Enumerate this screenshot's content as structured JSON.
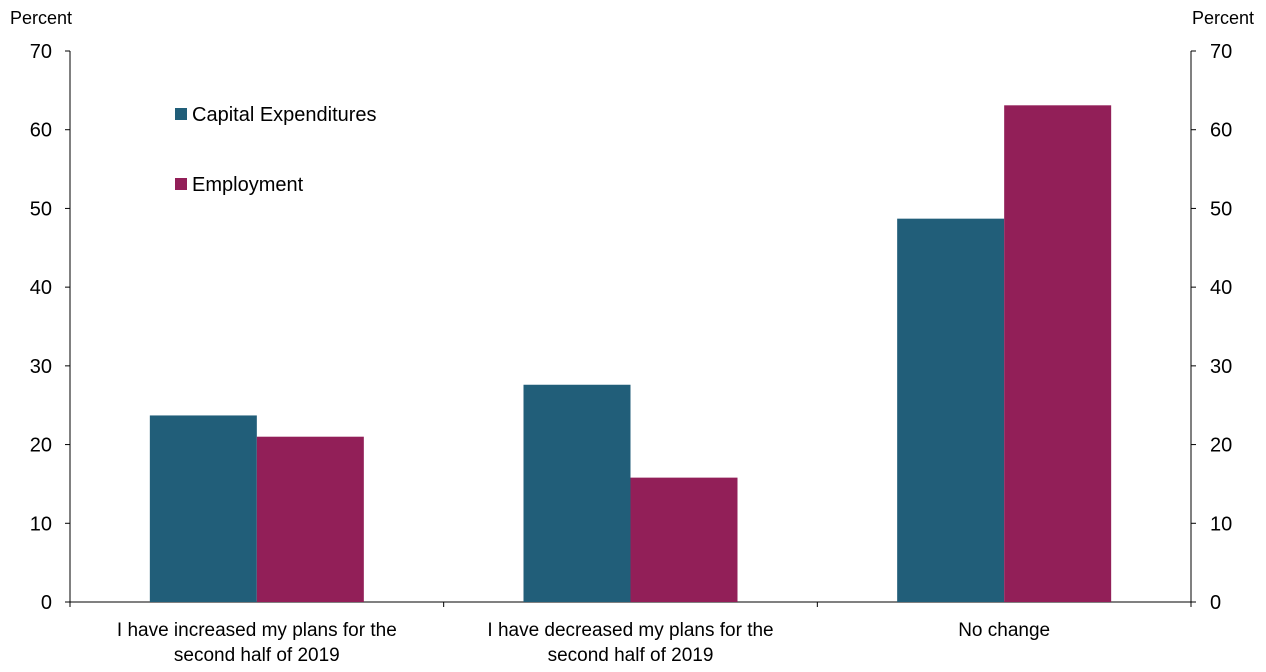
{
  "chart_data": {
    "type": "bar",
    "title": "",
    "left_axis_unit": "Percent",
    "right_axis_unit": "Percent",
    "ylim": [
      0,
      70
    ],
    "yticks": [
      0,
      10,
      20,
      30,
      40,
      50,
      60,
      70
    ],
    "grid": false,
    "legend_placement": "top-left",
    "categories": [
      [
        "I have increased my plans for the",
        "second half of 2019"
      ],
      [
        "I have decreased my plans for the",
        "second half of 2019"
      ],
      [
        "No change"
      ]
    ],
    "series": [
      {
        "name": "Capital Expenditures",
        "color": "#215e79",
        "values": [
          23.7,
          27.6,
          48.7
        ]
      },
      {
        "name": "Employment",
        "color": "#921f58",
        "values": [
          21.0,
          15.8,
          63.1
        ]
      }
    ]
  }
}
